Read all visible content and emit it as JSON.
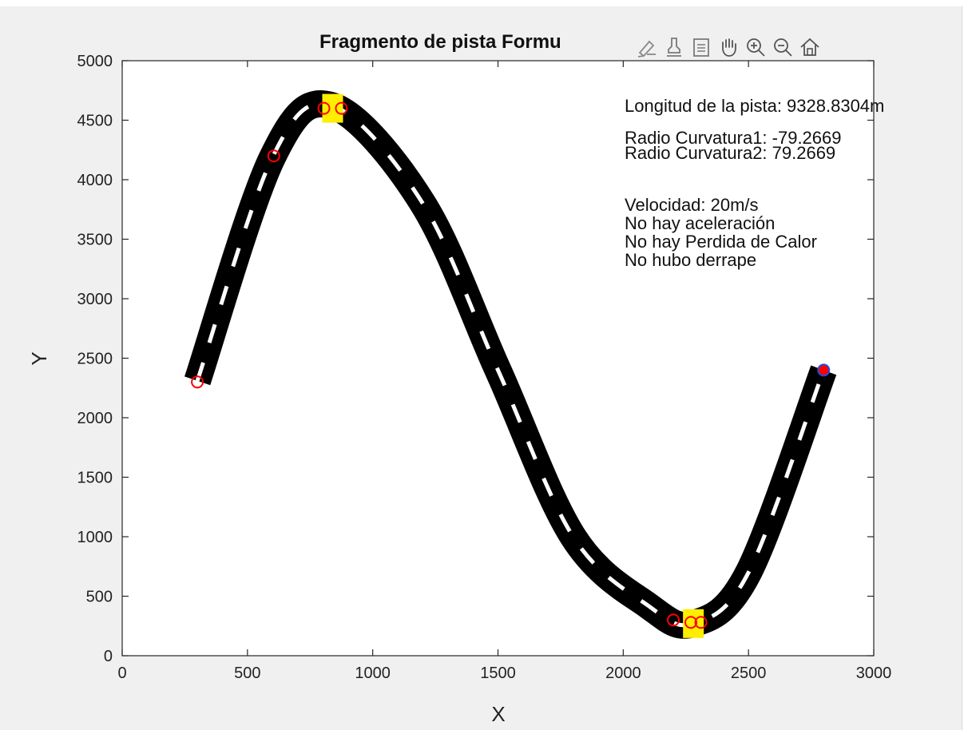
{
  "figure": {
    "title": "Fragmento de pista Formu",
    "annotations": [
      "Longitud de la pista: 9328.8304m",
      "Radio Curvatura1: -79.2669",
      "Radio Curvatura2: 79.2669",
      "Velocidad: 20m/s",
      "No hay aceleración",
      "No hay Perdida de Calor",
      "No hubo derrape"
    ],
    "toolbar": {
      "icons": [
        "brush-icon",
        "data-tips-icon",
        "legend-icon",
        "pan-hand-icon",
        "zoom-in-icon",
        "zoom-out-icon",
        "home-icon"
      ]
    }
  },
  "chart_data": {
    "type": "line",
    "title": "Fragmento de pista Formu",
    "xlabel": "X",
    "ylabel": "Y",
    "xlim": [
      0,
      3000
    ],
    "ylim": [
      0,
      5000
    ],
    "xticks": [
      0,
      500,
      1000,
      1500,
      2000,
      2500,
      3000
    ],
    "yticks": [
      0,
      500,
      1000,
      1500,
      2000,
      2500,
      3000,
      3500,
      4000,
      4500,
      5000
    ],
    "grid": false,
    "series": [
      {
        "style": "track",
        "color": "#000000",
        "x": [
          300,
          600,
          840,
          1200,
          1500,
          1800,
          2100,
          2280,
          2500,
          2800
        ],
        "y": [
          2310,
          4190,
          4620,
          3800,
          2400,
          1000,
          420,
          270,
          700,
          2400
        ]
      }
    ],
    "markers": {
      "red_circles": [
        {
          "x": 300,
          "y": 2300
        },
        {
          "x": 605,
          "y": 4200
        },
        {
          "x": 805,
          "y": 4600
        },
        {
          "x": 875,
          "y": 4600
        },
        {
          "x": 2200,
          "y": 300
        },
        {
          "x": 2270,
          "y": 280
        },
        {
          "x": 2310,
          "y": 280
        }
      ],
      "blue_filled": {
        "x": 2800,
        "y": 2400
      },
      "yellow_patches": [
        {
          "x": 840,
          "y": 4600
        },
        {
          "x": 2280,
          "y": 270
        }
      ]
    },
    "colors": {
      "track": "#000000",
      "center_dash": "#ffffff",
      "marker": "#ff0000",
      "point": "#1f4fe0",
      "patch": "#ffee00"
    }
  }
}
